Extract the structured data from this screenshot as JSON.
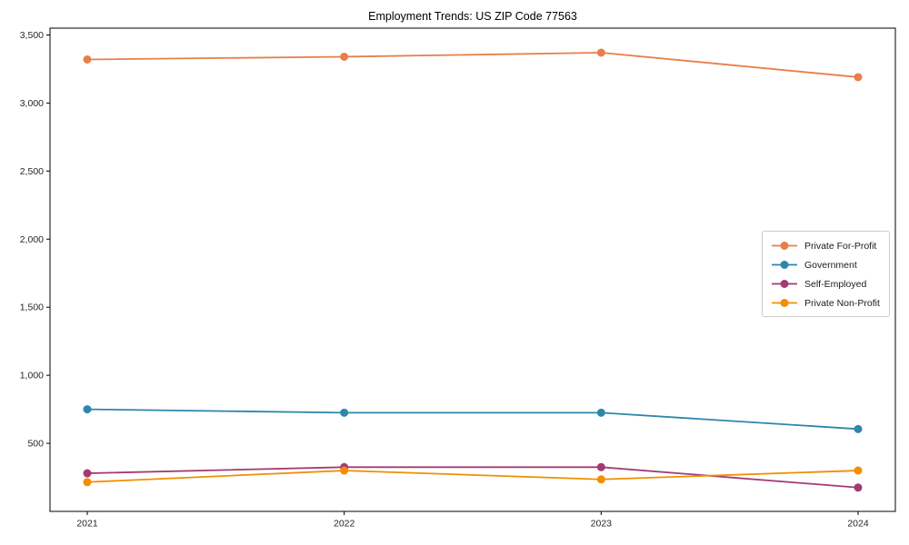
{
  "chart_data": {
    "type": "line",
    "title": "Employment Trends: US ZIP Code 77563",
    "categories": [
      "2021",
      "2022",
      "2023",
      "2024"
    ],
    "series": [
      {
        "name": "Private For-Profit",
        "color": "#E97E49",
        "values": [
          3320,
          3340,
          3370,
          3190
        ]
      },
      {
        "name": "Government",
        "color": "#2E86AB",
        "values": [
          750,
          725,
          725,
          605
        ]
      },
      {
        "name": "Self-Employed",
        "color": "#A23B72",
        "values": [
          280,
          325,
          325,
          175
        ]
      },
      {
        "name": "Private Non-Profit",
        "color": "#F18F01",
        "values": [
          215,
          300,
          235,
          300
        ]
      }
    ],
    "xlabel": "",
    "ylabel": "",
    "ylim": [
      0,
      3550
    ],
    "y_ticks": [
      500,
      1000,
      1500,
      2000,
      2500,
      3000,
      3500
    ],
    "y_tick_labels": [
      "500",
      "1,000",
      "1,500",
      "2,000",
      "2,500",
      "3,000",
      "3,500"
    ],
    "grid": false,
    "legend_position": "center right",
    "marker": "circle",
    "axis_color": "#000000",
    "tick_label_color": "#262626"
  }
}
